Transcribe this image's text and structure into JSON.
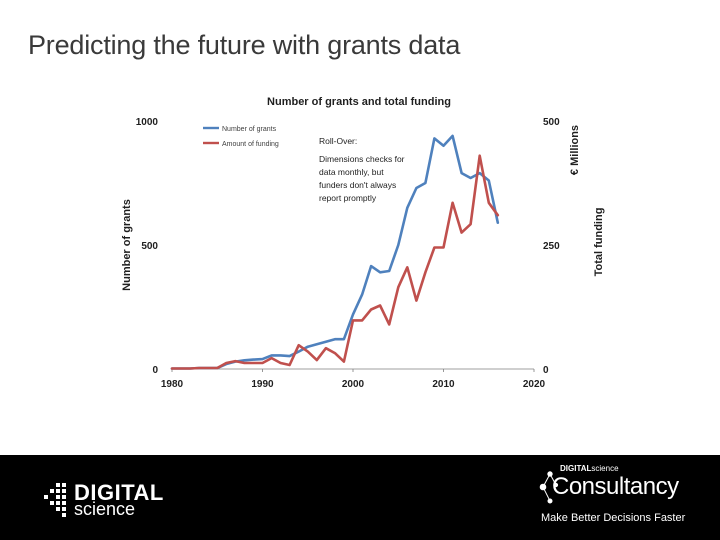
{
  "slide": {
    "title": "Predicting the future with grants data"
  },
  "chart_data": {
    "type": "line",
    "title": "Number of grants and total funding",
    "ylabel": "Number of grants",
    "y2label": "Total funding",
    "y2unit": "€ Millions",
    "x": [
      1980,
      1981,
      1982,
      1983,
      1984,
      1985,
      1986,
      1987,
      1988,
      1989,
      1990,
      1991,
      1992,
      1993,
      1994,
      1995,
      1996,
      1997,
      1998,
      1999,
      2000,
      2001,
      2002,
      2003,
      2004,
      2005,
      2006,
      2007,
      2008,
      2009,
      2010,
      2011,
      2012,
      2013,
      2014,
      2015,
      2016
    ],
    "xlim": [
      1980,
      2020
    ],
    "xticks": [
      "1980",
      "1990",
      "2000",
      "2010",
      "2020"
    ],
    "ylim": [
      0,
      1000
    ],
    "yticks": [
      "0",
      "500",
      "1000"
    ],
    "y2lim": [
      0,
      500
    ],
    "y2ticks": [
      "0",
      "250",
      "500"
    ],
    "legend_position": "top-left",
    "series": [
      {
        "name": "Number of grants",
        "axis": "left",
        "color": "#4f81bd",
        "values": [
          2,
          2,
          2,
          4,
          4,
          4,
          20,
          30,
          35,
          38,
          40,
          55,
          55,
          52,
          70,
          90,
          100,
          110,
          120,
          120,
          220,
          300,
          415,
          390,
          395,
          500,
          650,
          730,
          750,
          930,
          900,
          940,
          790,
          770,
          790,
          760,
          590
        ]
      },
      {
        "name": "Amount of funding",
        "axis": "right",
        "color": "#c0504d",
        "values": [
          1,
          1,
          1,
          2,
          2,
          2,
          12,
          16,
          12,
          12,
          12,
          22,
          12,
          8,
          48,
          35,
          18,
          42,
          32,
          15,
          98,
          98,
          120,
          128,
          90,
          165,
          205,
          138,
          195,
          245,
          245,
          335,
          275,
          292,
          430,
          335,
          310
        ]
      }
    ],
    "annotation": {
      "heading": "Roll-Over:",
      "lines": [
        "Dimensions checks for",
        "data monthly, but",
        "funders don't always",
        "report promptly"
      ]
    }
  },
  "footer": {
    "logo_word_1": "DIGITAL",
    "logo_word_2": "science",
    "consultancy_small_bold": "DIGITAL",
    "consultancy_small_rest": "science",
    "consultancy_title": "Consultancy",
    "tagline": "Make Better Decisions Faster"
  },
  "colors": {
    "footer_background": "#000000",
    "title_text": "#3a3a3a",
    "axis_text": "#1f1f1f"
  }
}
